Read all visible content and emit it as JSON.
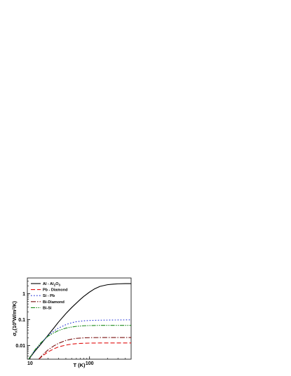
{
  "chart_data": {
    "type": "line",
    "xlabel": "T (K)",
    "ylabel": "σ_K (10^8 W/m^2/K)",
    "ylabel_parts": {
      "sym": "σ",
      "sub": "K",
      "paren_open": "(10",
      "exp1": "8",
      "mid": "W/m",
      "exp2": "2",
      "close": "/K)"
    },
    "xscale": "log",
    "yscale": "log",
    "xlim": [
      9,
      500
    ],
    "ylim": [
      0.003,
      4
    ],
    "xticks": [
      {
        "value": 10,
        "label": "10"
      },
      {
        "value": 100,
        "label": "100"
      }
    ],
    "yticks": [
      {
        "value": 0.01,
        "label": "0.01"
      },
      {
        "value": 0.1,
        "label": "0.1"
      },
      {
        "value": 1,
        "label": "1"
      }
    ],
    "legend_position": "top-left",
    "series": [
      {
        "name": "Al - Al2O3",
        "name_parts": {
          "main": "Al  - Al",
          "sub1": "2",
          "mid": "O",
          "sub2": "3"
        },
        "color": "#000000",
        "dash": "",
        "x": [
          9.5,
          10,
          12,
          15,
          20,
          25,
          30,
          40,
          50,
          60,
          70,
          80,
          100,
          120,
          150,
          200,
          250,
          300,
          400,
          500
        ],
        "y": [
          0.003,
          0.0035,
          0.006,
          0.011,
          0.025,
          0.047,
          0.08,
          0.17,
          0.29,
          0.43,
          0.6,
          0.78,
          1.15,
          1.5,
          1.9,
          2.2,
          2.32,
          2.38,
          2.42,
          2.43
        ]
      },
      {
        "name": "Pb - Diamond",
        "color": "#e01010",
        "dash": "6,3",
        "x": [
          14,
          16,
          18,
          20,
          25,
          30,
          40,
          50,
          60,
          80,
          100,
          150,
          200,
          300,
          500
        ],
        "y": [
          0.003,
          0.0039,
          0.0048,
          0.0057,
          0.0075,
          0.0089,
          0.0105,
          0.0114,
          0.0119,
          0.0123,
          0.0125,
          0.0126,
          0.0126,
          0.0126,
          0.0126
        ]
      },
      {
        "name": "Si - Pb",
        "color": "#1f2fd6",
        "dash": "1.6,2.4",
        "x": [
          9.5,
          10,
          12,
          15,
          20,
          25,
          30,
          40,
          50,
          60,
          80,
          100,
          150,
          200,
          300,
          500
        ],
        "y": [
          0.003,
          0.0036,
          0.0065,
          0.012,
          0.024,
          0.036,
          0.047,
          0.064,
          0.076,
          0.083,
          0.09,
          0.093,
          0.095,
          0.096,
          0.097,
          0.098
        ]
      },
      {
        "name": "Bi-Diamond",
        "color": "#7a1010",
        "dash": "7,2,1.5,2",
        "x": [
          14,
          16,
          18,
          20,
          25,
          30,
          40,
          50,
          60,
          80,
          100,
          150,
          200,
          300,
          500
        ],
        "y": [
          0.003,
          0.0042,
          0.0055,
          0.0068,
          0.0097,
          0.0122,
          0.0158,
          0.0178,
          0.019,
          0.0199,
          0.0202,
          0.0204,
          0.0205,
          0.0205,
          0.0205
        ]
      },
      {
        "name": "Bi-Si",
        "color": "#1c8a1c",
        "dash": "6,1.5,1.5,1.5,1.5,1.5",
        "x": [
          9.5,
          10,
          12,
          15,
          20,
          25,
          30,
          40,
          50,
          60,
          80,
          100,
          150,
          200,
          300,
          500
        ],
        "y": [
          0.003,
          0.0036,
          0.0067,
          0.0125,
          0.023,
          0.031,
          0.038,
          0.047,
          0.052,
          0.055,
          0.058,
          0.059,
          0.06,
          0.06,
          0.06,
          0.06
        ]
      }
    ]
  }
}
